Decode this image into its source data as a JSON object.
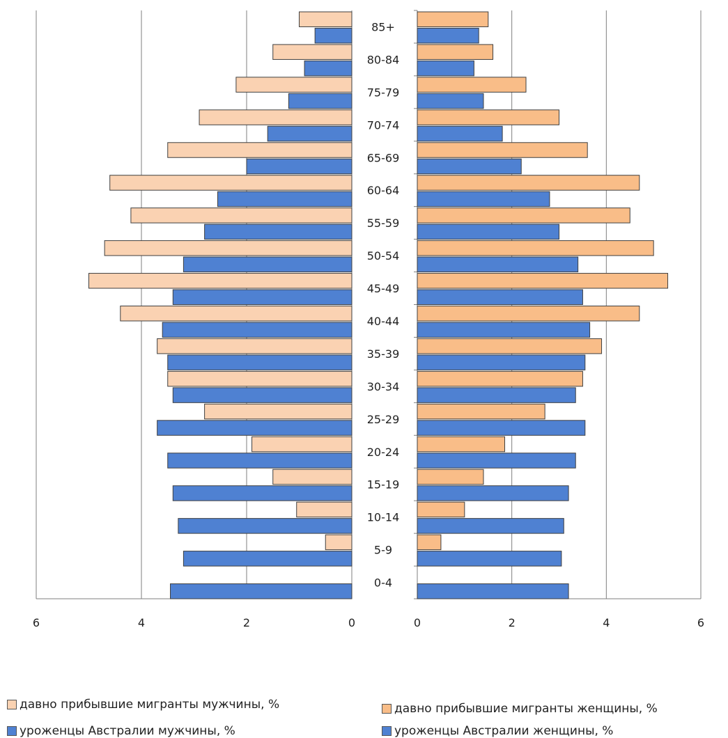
{
  "chart_data": {
    "type": "bar",
    "subtype": "population-pyramid",
    "categories": [
      "0-4",
      "5-9",
      "10-14",
      "15-19",
      "20-24",
      "25-29",
      "30-34",
      "35-39",
      "40-44",
      "45-49",
      "50-54",
      "55-59",
      "60-64",
      "65-69",
      "70-74",
      "75-79",
      "80-84",
      "85+"
    ],
    "x_ticks_left": [
      "6",
      "4",
      "2",
      "0"
    ],
    "x_ticks_right": [
      "0",
      "2",
      "4",
      "6"
    ],
    "xlim": [
      0,
      6
    ],
    "grid": true,
    "legend_position": "bottom",
    "series": [
      {
        "name": "давно прибывшие мигранты мужчины, %",
        "side": "left",
        "color": "#fad2b2",
        "values": [
          0,
          0.5,
          1.05,
          1.5,
          1.9,
          2.8,
          3.5,
          3.7,
          4.4,
          5.0,
          4.7,
          4.2,
          4.6,
          3.5,
          2.9,
          2.2,
          1.5,
          1.0
        ]
      },
      {
        "name": "уроженцы Австралии мужчины, %",
        "side": "left",
        "color": "#4f81d2",
        "values": [
          3.45,
          3.2,
          3.3,
          3.4,
          3.5,
          3.7,
          3.4,
          3.5,
          3.6,
          3.4,
          3.2,
          2.8,
          2.55,
          2.0,
          1.6,
          1.2,
          0.9,
          0.7
        ]
      },
      {
        "name": "давно прибывшие мигранты женщины, %",
        "side": "right",
        "color": "#f9bd88",
        "values": [
          0,
          0.5,
          1.0,
          1.4,
          1.85,
          2.7,
          3.5,
          3.9,
          4.7,
          5.3,
          5.0,
          4.5,
          4.7,
          3.6,
          3.0,
          2.3,
          1.6,
          1.5
        ]
      },
      {
        "name": "уроженцы Австралии женщины, %",
        "side": "right",
        "color": "#4f81d2",
        "values": [
          3.2,
          3.05,
          3.1,
          3.2,
          3.35,
          3.55,
          3.35,
          3.55,
          3.65,
          3.5,
          3.4,
          3.0,
          2.8,
          2.2,
          1.8,
          1.4,
          1.2,
          1.3
        ]
      }
    ]
  }
}
